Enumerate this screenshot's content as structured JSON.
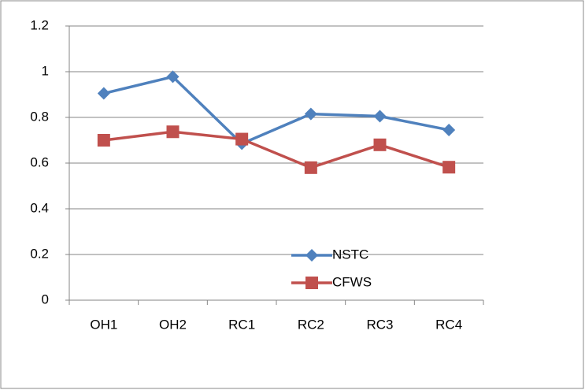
{
  "chart_data": {
    "type": "line",
    "categories": [
      "OH1",
      "OH2",
      "RC1",
      "RC2",
      "RC3",
      "RC4"
    ],
    "series": [
      {
        "name": "NSTC",
        "color": "#4f81bd",
        "marker": "diamond",
        "values": [
          0.905,
          0.978,
          0.685,
          0.815,
          0.805,
          0.745
        ]
      },
      {
        "name": "CFWS",
        "color": "#c0504d",
        "marker": "square",
        "values": [
          0.7,
          0.737,
          0.705,
          0.58,
          0.68,
          0.582
        ]
      }
    ],
    "ylim": [
      0,
      1.2
    ],
    "yticks": [
      0,
      0.2,
      0.4,
      0.6,
      0.8,
      1,
      1.2
    ],
    "grid": true,
    "legend": "lower center"
  }
}
